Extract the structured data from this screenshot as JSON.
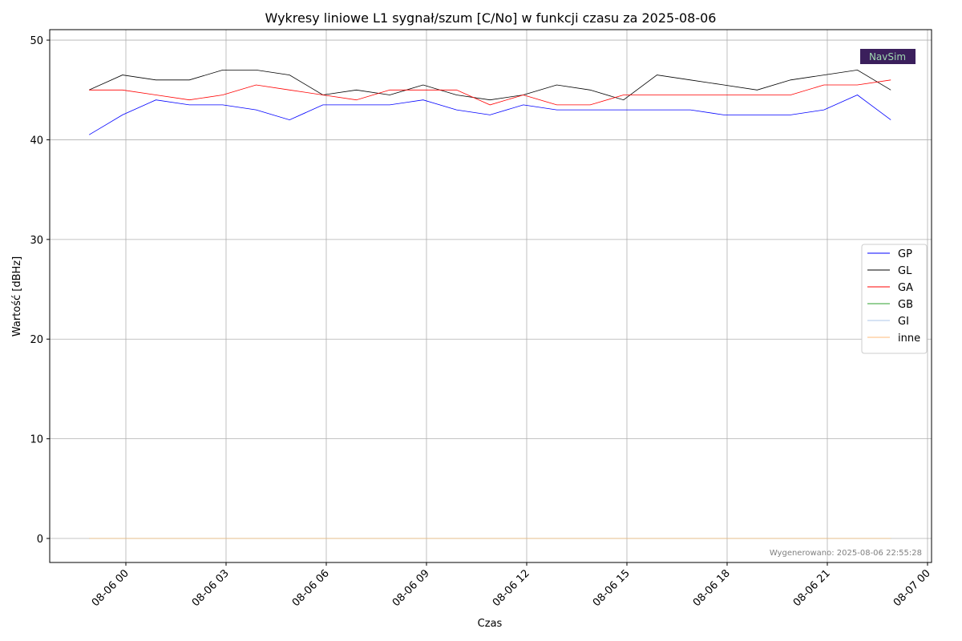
{
  "chart_data": {
    "type": "line",
    "title": "Wykresy liniowe L1 sygnał/szum [C/No] w funkcji czasu za 2025-08-06",
    "xlabel": "Czas",
    "ylabel": "Wartość [dBHz]",
    "annotation": "Wygenerowano: 2025-08-06 22:55:28",
    "logo": "NavSim",
    "x": [
      -1.1,
      -0.1,
      0.9,
      1.9,
      2.9,
      3.9,
      4.9,
      5.9,
      6.9,
      7.9,
      8.9,
      9.9,
      10.9,
      11.9,
      12.9,
      13.9,
      14.9,
      15.9,
      16.9,
      17.9,
      18.9,
      19.9,
      20.9,
      21.9,
      22.9
    ],
    "series": [
      {
        "name": "GP",
        "color": "#0000ff",
        "values": [
          40.5,
          42.5,
          44,
          43.5,
          43.5,
          43,
          42,
          43.5,
          43.5,
          43.5,
          44,
          43,
          42.5,
          43.5,
          43,
          43,
          43,
          43,
          43,
          42.5,
          42.5,
          42.5,
          43,
          44.5,
          42
        ]
      },
      {
        "name": "GL",
        "color": "#000000",
        "values": [
          45,
          46.5,
          46,
          46,
          47,
          47,
          46.5,
          44.5,
          45,
          44.5,
          45.5,
          44.5,
          44,
          44.5,
          45.5,
          45,
          44,
          46.5,
          46,
          45.5,
          45,
          46,
          46.5,
          47,
          45
        ]
      },
      {
        "name": "GA",
        "color": "#ff0000",
        "values": [
          45,
          45,
          44.5,
          44,
          44.5,
          45.5,
          45,
          44.5,
          44,
          45,
          45,
          45,
          43.5,
          44.5,
          43.5,
          43.5,
          44.5,
          44.5,
          44.5,
          44.5,
          44.5,
          44.5,
          45.5,
          45.5,
          46
        ]
      },
      {
        "name": "GB",
        "color": "#2ca02c",
        "values": [
          0,
          0,
          0,
          0,
          0,
          0,
          0,
          0,
          0,
          0,
          0,
          0,
          0,
          0,
          0,
          0,
          0,
          0,
          0,
          0,
          0,
          0,
          0,
          0,
          0
        ]
      },
      {
        "name": "GI",
        "color": "#aec7e8",
        "values": [
          0,
          0,
          0,
          0,
          0,
          0,
          0,
          0,
          0,
          0,
          0,
          0,
          0,
          0,
          0,
          0,
          0,
          0,
          0,
          0,
          0,
          0,
          0,
          0,
          0
        ]
      },
      {
        "name": "inne",
        "color": "#ffbb78",
        "values": [
          0,
          0,
          0,
          0,
          0,
          0,
          0,
          0,
          0,
          0,
          0,
          0,
          0,
          0,
          0,
          0,
          0,
          0,
          0,
          0,
          0,
          0,
          0,
          0,
          0
        ]
      }
    ],
    "xlim": [
      -2.28,
      24.12
    ],
    "xticks": [
      {
        "value": 0,
        "label": "08-06 00"
      },
      {
        "value": 3,
        "label": "08-06 03"
      },
      {
        "value": 6,
        "label": "08-06 06"
      },
      {
        "value": 9,
        "label": "08-06 09"
      },
      {
        "value": 12,
        "label": "08-06 12"
      },
      {
        "value": 15,
        "label": "08-06 15"
      },
      {
        "value": 18,
        "label": "08-06 18"
      },
      {
        "value": 21,
        "label": "08-06 21"
      },
      {
        "value": 24,
        "label": "08-07 00"
      }
    ],
    "ylim": [
      -2.41,
      51.05
    ],
    "yticks": [
      0,
      10,
      20,
      30,
      40,
      50
    ],
    "grid": true,
    "legend": "right"
  }
}
